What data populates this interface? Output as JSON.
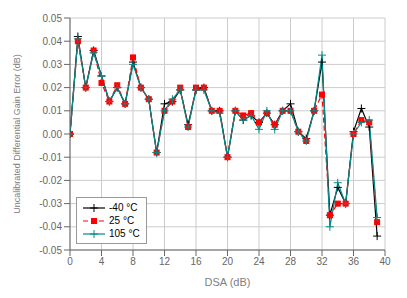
{
  "chart_data": {
    "type": "line",
    "xlabel": "DSA (dB)",
    "ylabel": "Uncalibrated Differential Gain Error (dB)",
    "xlim": [
      0,
      40
    ],
    "ylim": [
      -0.05,
      0.05
    ],
    "xticks": [
      0,
      4,
      8,
      12,
      16,
      20,
      24,
      28,
      32,
      36,
      40
    ],
    "yticks": [
      -0.05,
      -0.04,
      -0.03,
      -0.02,
      -0.01,
      {
        "value": 0,
        "label": "0.00"
      },
      0.01,
      0.02,
      0.03,
      0.04,
      0.05
    ],
    "grid": true,
    "legend": "lower left",
    "x": [
      0,
      1,
      2,
      3,
      4,
      5,
      6,
      7,
      8,
      9,
      10,
      11,
      12,
      13,
      14,
      15,
      16,
      17,
      18,
      19,
      20,
      21,
      22,
      23,
      24,
      25,
      26,
      27,
      28,
      29,
      30,
      31,
      32,
      33,
      34,
      35,
      36,
      37,
      38,
      39
    ],
    "series": [
      {
        "name": "-40 °C",
        "color": "#000000",
        "marker": "plus",
        "line_style": "solid",
        "values": [
          0.0,
          0.042,
          0.02,
          0.036,
          0.025,
          0.014,
          0.02,
          0.013,
          0.031,
          0.02,
          0.015,
          -0.008,
          0.013,
          0.014,
          0.019,
          0.004,
          0.019,
          0.02,
          0.01,
          0.01,
          -0.01,
          0.01,
          0.006,
          0.008,
          0.005,
          0.009,
          0.004,
          0.01,
          0.013,
          0.001,
          -0.002,
          0.01,
          0.031,
          -0.035,
          -0.023,
          -0.03,
          0.001,
          0.011,
          0.003,
          -0.044
        ]
      },
      {
        "name": "25 °C",
        "color": "#ff0000",
        "marker": "square",
        "line_style": "dashed",
        "values": [
          0.0,
          0.04,
          0.02,
          0.036,
          0.022,
          0.014,
          0.021,
          0.013,
          0.033,
          0.02,
          0.015,
          -0.008,
          0.01,
          0.014,
          0.02,
          0.003,
          0.02,
          0.02,
          0.01,
          0.01,
          -0.01,
          0.01,
          0.008,
          0.009,
          0.005,
          0.009,
          0.004,
          0.01,
          0.01,
          0.001,
          -0.003,
          0.01,
          0.017,
          -0.035,
          -0.03,
          -0.03,
          0.0,
          0.006,
          0.005,
          -0.038
        ]
      },
      {
        "name": "105 °C",
        "color": "#008B8B",
        "marker": "plus",
        "line_style": "solid",
        "values": [
          0.0,
          0.041,
          0.02,
          0.035,
          0.025,
          0.014,
          0.02,
          0.013,
          0.03,
          0.02,
          0.015,
          -0.008,
          0.01,
          0.015,
          0.019,
          0.003,
          0.019,
          0.019,
          0.01,
          0.009,
          -0.01,
          0.01,
          0.006,
          0.008,
          0.002,
          0.01,
          0.002,
          0.01,
          0.01,
          0.001,
          -0.003,
          0.01,
          0.034,
          -0.04,
          -0.021,
          -0.03,
          0.0,
          0.005,
          0.006,
          -0.036
        ]
      }
    ]
  }
}
